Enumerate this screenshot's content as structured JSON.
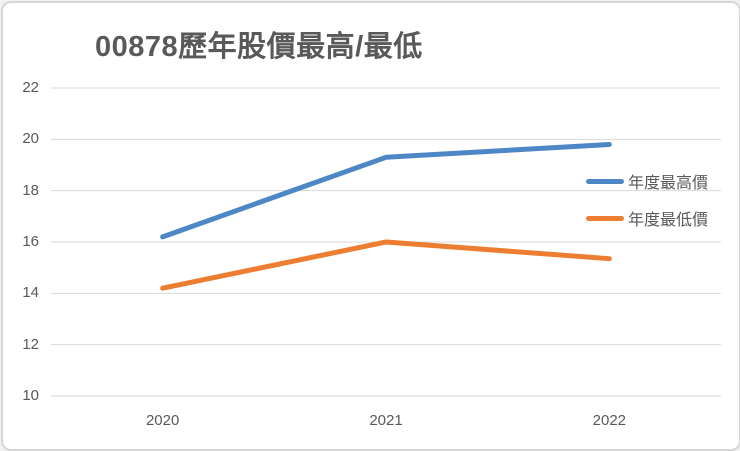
{
  "chart_data": {
    "type": "line",
    "title": "00878歷年股價最高/最低",
    "categories": [
      "2020",
      "2021",
      "2022"
    ],
    "series": [
      {
        "name": "年度最高價",
        "values": [
          16.2,
          19.3,
          19.8
        ],
        "color": "#4e87c6"
      },
      {
        "name": "年度最低價",
        "values": [
          14.2,
          16.0,
          15.35
        ],
        "color": "#ed7d31"
      }
    ],
    "xlabel": "",
    "ylabel": "",
    "ylim": [
      10,
      22
    ],
    "yticks": [
      10,
      12,
      14,
      16,
      18,
      20,
      22
    ],
    "grid": "horizontal",
    "gridline_color": "#d9d9d9",
    "axis_text_color": "#595959",
    "title_color": "#595959",
    "legend_position": "right",
    "line_width": 5
  }
}
